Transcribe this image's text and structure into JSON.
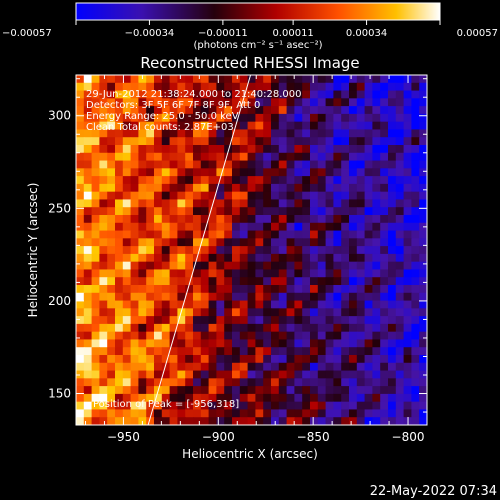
{
  "chart_data": {
    "type": "heatmap",
    "title": "Reconstructed RHESSI Image",
    "xlabel": "Heliocentric X (arcsec)",
    "ylabel": "Heliocentric Y (arcsec)",
    "xlim": [
      -975,
      -790
    ],
    "ylim": [
      133,
      322
    ],
    "x_ticks": [
      -950,
      -900,
      -850,
      -800
    ],
    "y_ticks": [
      150,
      200,
      250,
      300
    ],
    "x_tick_labels": [
      "−950",
      "−900",
      "−850",
      "−800"
    ],
    "y_tick_labels": [
      "150",
      "200",
      "250",
      "300"
    ],
    "colorbar": {
      "min": -0.00057,
      "max": 0.00057,
      "ticks": [
        -0.00057,
        -0.00034,
        -0.00011,
        0.00011,
        0.00034,
        0.00057
      ],
      "tick_labels": [
        "−0.00057",
        "−0.00034",
        "−0.00011",
        "0.00011",
        "0.00034",
        "0.00057"
      ],
      "unit_label": "(photons cm⁻² s⁻¹ asec⁻²)",
      "colors": [
        "#0000ff",
        "#4b0aa8",
        "#2a0010",
        "#c00000",
        "#ff8000",
        "#ffffff"
      ]
    },
    "annotations": [
      "29-Jun-2012 21:38:24.000 to 21:40:28.000",
      "Detectors: 3F 5F 6F 7F 8F 9F, Att 0",
      "Energy Range: 25.0 - 50.0 keV",
      "Clean   Total counts: 2.87E+03",
      "Position of Peak = [-956,318]"
    ],
    "limb_line": [
      [
        -937,
        133
      ],
      [
        -883,
        322
      ]
    ],
    "grid": false
  },
  "timestamp": "22-May-2022 07:34"
}
